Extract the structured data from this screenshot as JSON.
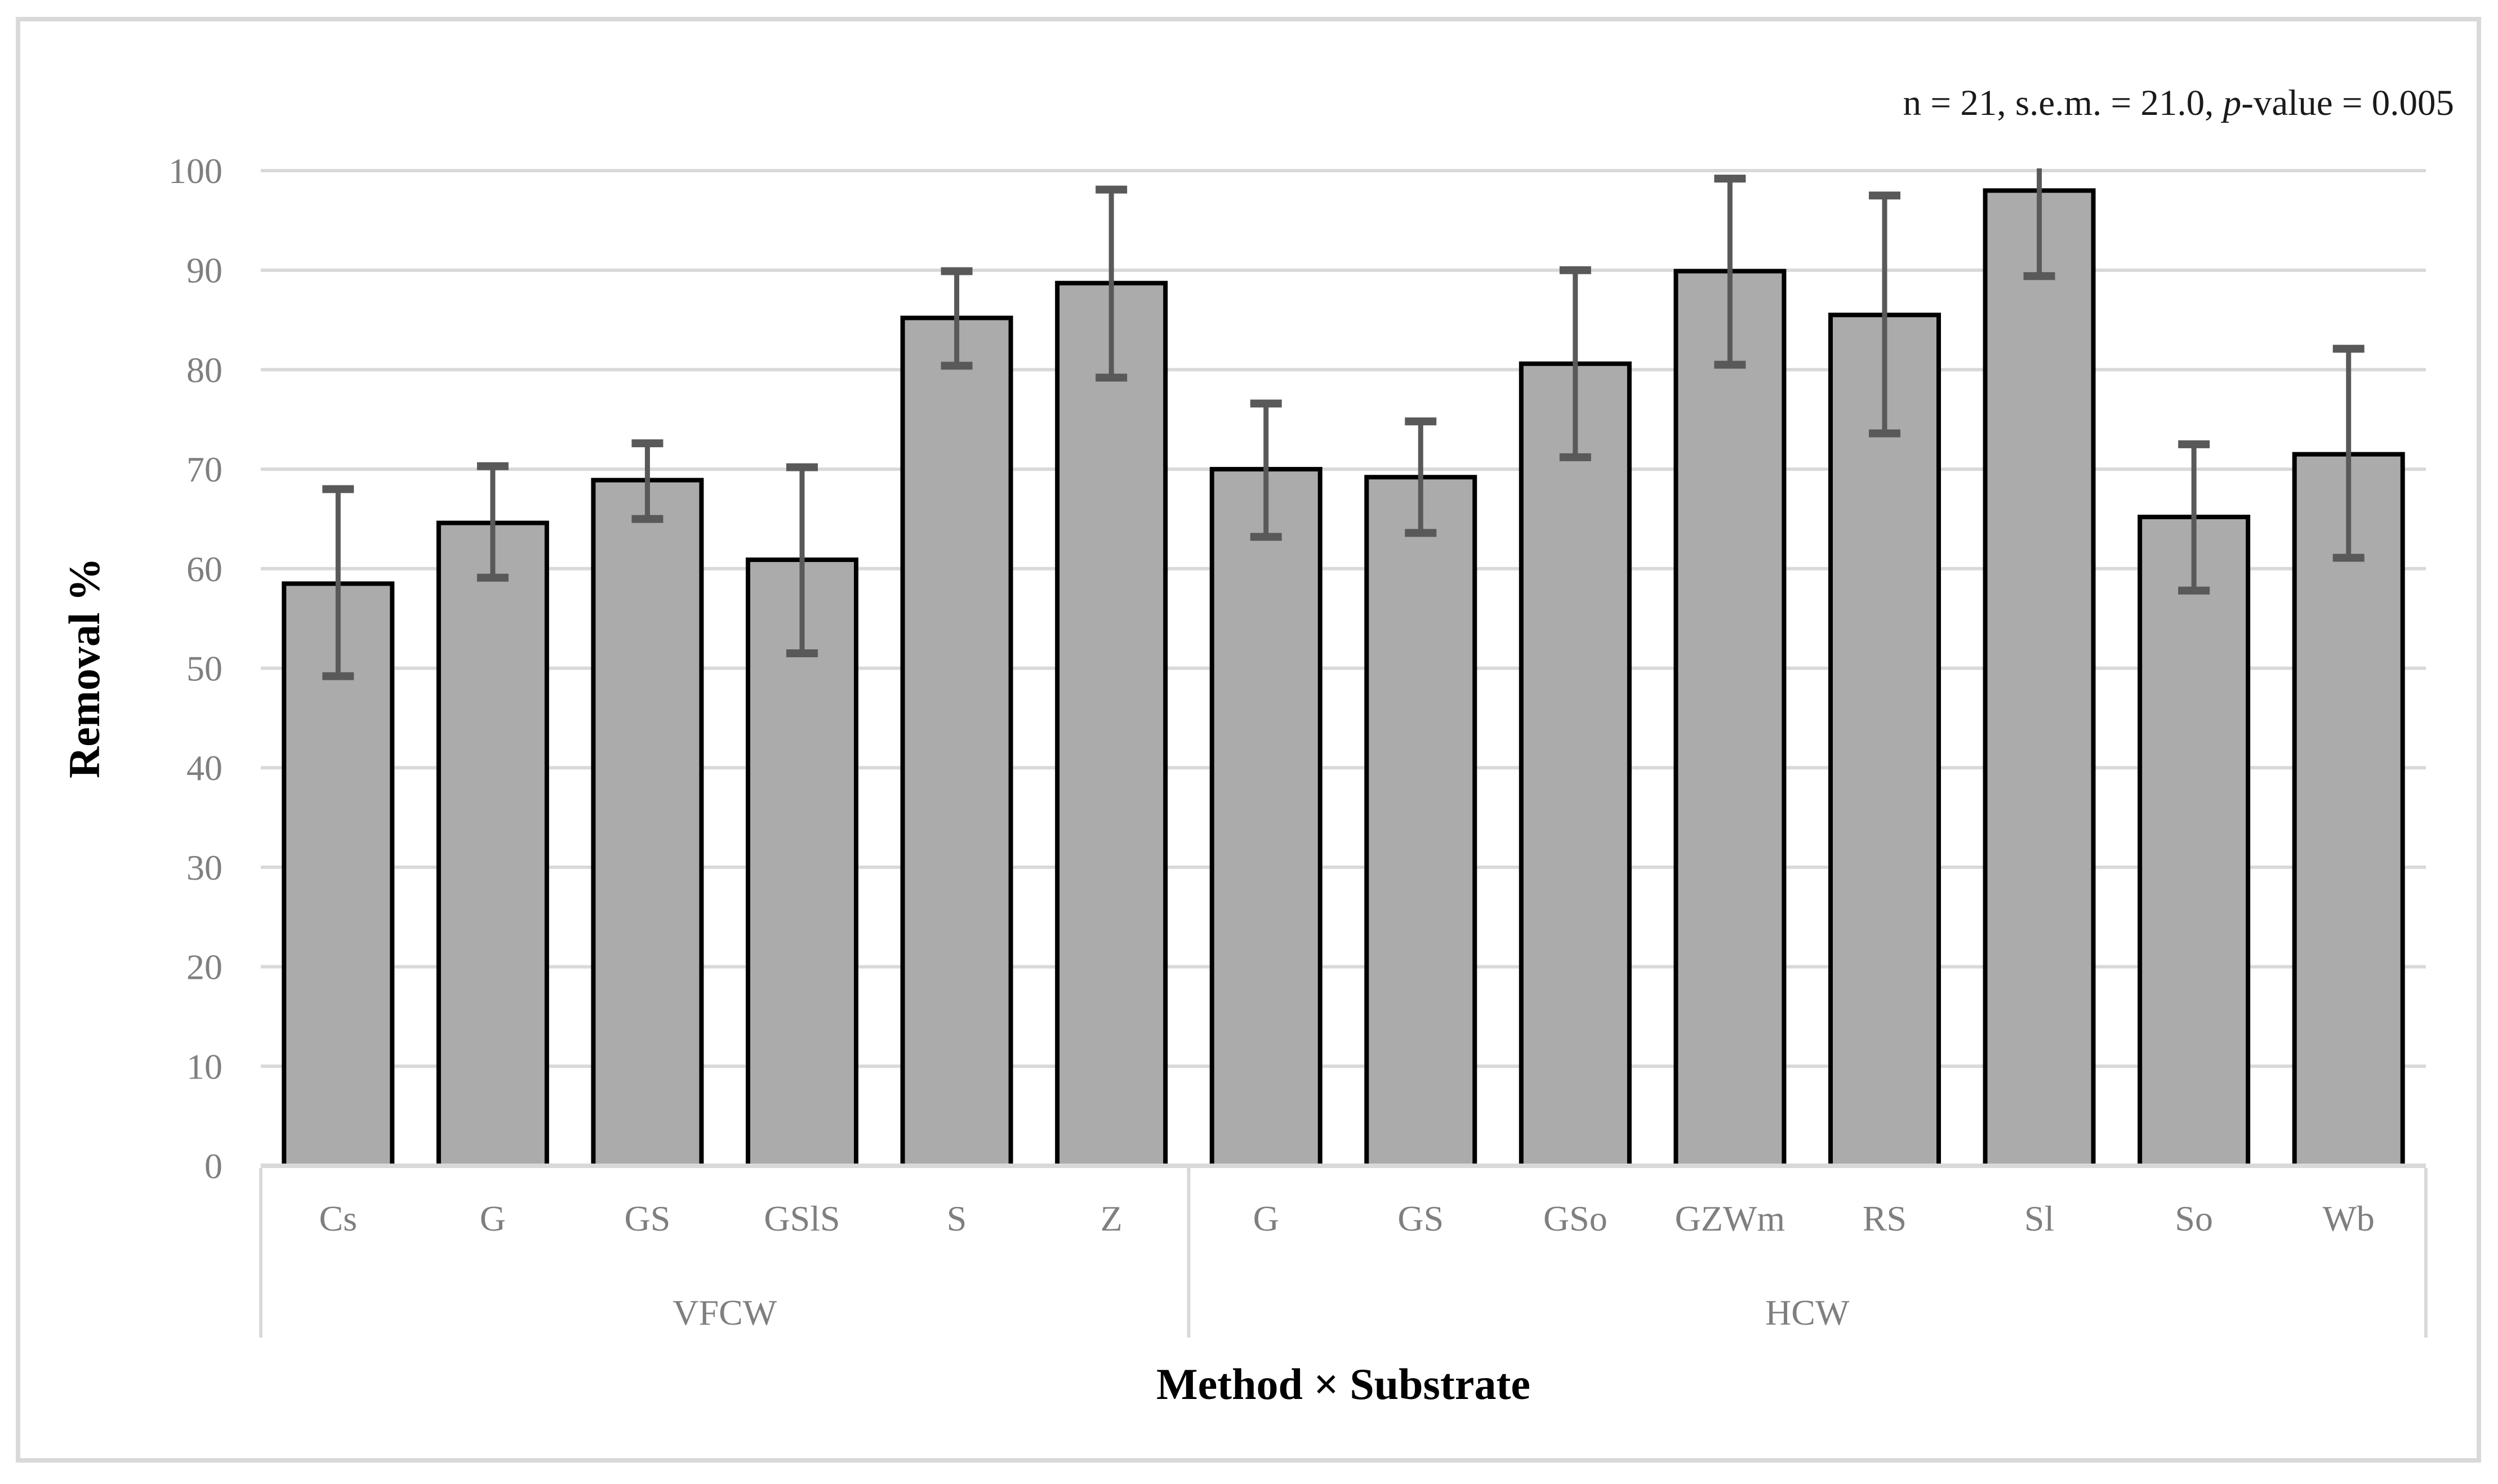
{
  "figure": {
    "annotation": {
      "prefix": "n = 21, s.e.m. = 21.0, ",
      "italic": "p",
      "suffix": "-value = 0.005"
    }
  },
  "chart_data": {
    "type": "bar",
    "title": "",
    "ylabel": "Removal %",
    "xlabel": "Method × Substrate",
    "ylim": [
      0,
      100
    ],
    "yticks": [
      0,
      10,
      20,
      30,
      40,
      50,
      60,
      70,
      80,
      90,
      100
    ],
    "grid": "horizontal",
    "legend": "none",
    "annotation_text": "n = 21, s.e.m. = 21.0, p-value = 0.005",
    "groups": [
      {
        "label": "VFCW",
        "categories": [
          "Cs",
          "G",
          "GS",
          "GSlS",
          "S",
          "Z"
        ],
        "values": [
          58.5,
          64.6,
          68.9,
          60.9,
          85.2,
          88.7
        ],
        "error_low": [
          49.2,
          59.1,
          65.0,
          51.5,
          80.4,
          79.2
        ],
        "error_high": [
          68.0,
          70.3,
          72.6,
          70.2,
          89.9,
          98.1
        ]
      },
      {
        "label": "HCW",
        "categories": [
          "G",
          "GS",
          "GSo",
          "GZWm",
          "RS",
          "Sl",
          "So",
          "Wb"
        ],
        "values": [
          70.0,
          69.2,
          80.6,
          89.9,
          85.5,
          98.0,
          65.2,
          71.5
        ],
        "error_low": [
          63.2,
          63.6,
          71.2,
          80.5,
          73.6,
          89.4,
          57.8,
          61.1
        ],
        "error_high": [
          76.6,
          74.8,
          90.0,
          99.2,
          97.5,
          100.2,
          72.5,
          82.1
        ]
      }
    ],
    "style": {
      "bar_fill": "#ABABAB",
      "bar_border": "#000000",
      "error_bar_color": "#595959",
      "gridline_color": "#D9D9D9",
      "axis_line_color": "#D9D9D9",
      "separator_color": "#D9D9D9",
      "tick_label_color": "#7F7F7F",
      "title_color": "#000000",
      "figure_border_color": "#D9D9D9"
    }
  }
}
